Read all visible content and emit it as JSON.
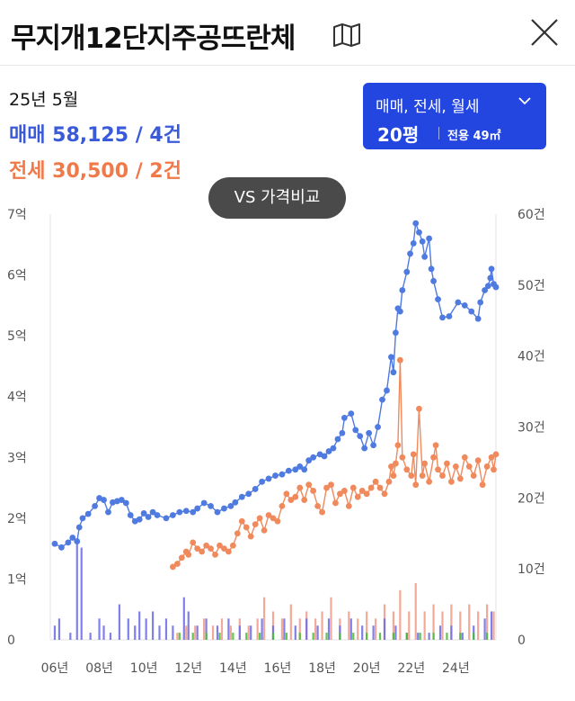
{
  "header": {
    "title": "무지개12단지주공뜨란체"
  },
  "summary": {
    "period": "25년 5월",
    "sale": "매매 58,125 / 4건",
    "jeonse": "전세 30,500 / 2건"
  },
  "filter": {
    "type": "매매, 전세, 월세",
    "size": "20평",
    "area": "전용 49㎡"
  },
  "vs_button": "VS 가격비교",
  "colors": {
    "sale": "#4f7ae0",
    "jeonse": "#f08a5d",
    "accent": "#2446e0",
    "volume_sale": "#6a6ae6",
    "volume_jeonse": "#f19a86",
    "volume_green": "#44bb33"
  },
  "chart_data": {
    "type": "line",
    "left_axis": {
      "ticks": [
        "0",
        "1억",
        "2억",
        "3억",
        "4억",
        "5억",
        "6억",
        "7억"
      ],
      "range": [
        0,
        7
      ]
    },
    "right_axis": {
      "ticks": [
        "0",
        "10건",
        "20건",
        "30건",
        "40건",
        "50건",
        "60건"
      ],
      "range": [
        0,
        60
      ]
    },
    "x_ticks": [
      {
        "year": 2006,
        "label": "06년"
      },
      {
        "year": 2008,
        "label": "08년"
      },
      {
        "year": 2010,
        "label": "10년"
      },
      {
        "year": 2012,
        "label": "12년"
      },
      {
        "year": 2014,
        "label": "14년"
      },
      {
        "year": 2016,
        "label": "16년"
      },
      {
        "year": 2018,
        "label": "18년"
      },
      {
        "year": 2020,
        "label": "20년"
      },
      {
        "year": 2022,
        "label": "22년"
      },
      {
        "year": 2024,
        "label": "24년"
      }
    ],
    "x_range": [
      2005.8,
      2025.8
    ],
    "series": [
      {
        "name": "매매",
        "points": [
          [
            2006.0,
            1.58
          ],
          [
            2006.3,
            1.52
          ],
          [
            2006.6,
            1.6
          ],
          [
            2006.8,
            1.68
          ],
          [
            2007.0,
            1.62
          ],
          [
            2007.1,
            1.85
          ],
          [
            2007.25,
            2.0
          ],
          [
            2007.5,
            2.07
          ],
          [
            2007.8,
            2.2
          ],
          [
            2008.0,
            2.33
          ],
          [
            2008.2,
            2.3
          ],
          [
            2008.4,
            2.1
          ],
          [
            2008.6,
            2.26
          ],
          [
            2008.8,
            2.28
          ],
          [
            2009.0,
            2.3
          ],
          [
            2009.2,
            2.25
          ],
          [
            2009.4,
            2.05
          ],
          [
            2009.6,
            1.95
          ],
          [
            2009.8,
            1.98
          ],
          [
            2010.0,
            2.08
          ],
          [
            2010.2,
            2.02
          ],
          [
            2010.4,
            2.1
          ],
          [
            2010.6,
            2.05
          ],
          [
            2011.0,
            2.0
          ],
          [
            2011.3,
            2.05
          ],
          [
            2011.6,
            2.1
          ],
          [
            2011.9,
            2.12
          ],
          [
            2012.2,
            2.1
          ],
          [
            2012.4,
            2.16
          ],
          [
            2012.7,
            2.25
          ],
          [
            2013.0,
            2.2
          ],
          [
            2013.3,
            2.1
          ],
          [
            2013.6,
            2.16
          ],
          [
            2013.9,
            2.2
          ],
          [
            2014.1,
            2.26
          ],
          [
            2014.4,
            2.35
          ],
          [
            2014.7,
            2.4
          ],
          [
            2015.0,
            2.48
          ],
          [
            2015.3,
            2.6
          ],
          [
            2015.6,
            2.65
          ],
          [
            2015.9,
            2.7
          ],
          [
            2016.2,
            2.72
          ],
          [
            2016.5,
            2.78
          ],
          [
            2016.8,
            2.8
          ],
          [
            2017.0,
            2.85
          ],
          [
            2017.2,
            2.8
          ],
          [
            2017.4,
            2.95
          ],
          [
            2017.6,
            3.0
          ],
          [
            2017.9,
            3.05
          ],
          [
            2018.1,
            3.02
          ],
          [
            2018.3,
            3.1
          ],
          [
            2018.5,
            3.15
          ],
          [
            2018.7,
            3.3
          ],
          [
            2018.9,
            3.4
          ],
          [
            2019.0,
            3.65
          ],
          [
            2019.3,
            3.72
          ],
          [
            2019.5,
            3.45
          ],
          [
            2019.7,
            3.35
          ],
          [
            2019.9,
            3.15
          ],
          [
            2020.1,
            3.4
          ],
          [
            2020.3,
            3.2
          ],
          [
            2020.5,
            3.5
          ],
          [
            2020.7,
            3.95
          ],
          [
            2020.9,
            4.1
          ],
          [
            2021.1,
            4.65
          ],
          [
            2021.2,
            4.4
          ],
          [
            2021.3,
            5.05
          ],
          [
            2021.4,
            5.45
          ],
          [
            2021.5,
            5.4
          ],
          [
            2021.6,
            5.75
          ],
          [
            2021.8,
            6.05
          ],
          [
            2021.95,
            6.35
          ],
          [
            2022.1,
            6.52
          ],
          [
            2022.2,
            6.85
          ],
          [
            2022.35,
            6.7
          ],
          [
            2022.5,
            6.55
          ],
          [
            2022.6,
            6.3
          ],
          [
            2022.8,
            6.6
          ],
          [
            2022.9,
            6.1
          ],
          [
            2023.0,
            5.9
          ],
          [
            2023.2,
            5.6
          ],
          [
            2023.4,
            5.3
          ],
          [
            2023.7,
            5.32
          ],
          [
            2024.1,
            5.55
          ],
          [
            2024.4,
            5.5
          ],
          [
            2024.7,
            5.4
          ],
          [
            2025.0,
            5.28
          ],
          [
            2025.1,
            5.55
          ],
          [
            2025.3,
            5.75
          ],
          [
            2025.45,
            5.82
          ],
          [
            2025.55,
            5.95
          ],
          [
            2025.6,
            6.1
          ],
          [
            2025.7,
            5.85
          ],
          [
            2025.8,
            5.8
          ]
        ]
      },
      {
        "name": "전세",
        "points": [
          [
            2011.3,
            1.2
          ],
          [
            2011.5,
            1.25
          ],
          [
            2011.7,
            1.35
          ],
          [
            2011.9,
            1.45
          ],
          [
            2012.0,
            1.4
          ],
          [
            2012.2,
            1.6
          ],
          [
            2012.4,
            1.5
          ],
          [
            2012.6,
            1.45
          ],
          [
            2012.8,
            1.55
          ],
          [
            2013.0,
            1.5
          ],
          [
            2013.2,
            1.4
          ],
          [
            2013.4,
            1.55
          ],
          [
            2013.6,
            1.5
          ],
          [
            2013.8,
            1.45
          ],
          [
            2014.0,
            1.55
          ],
          [
            2014.2,
            1.75
          ],
          [
            2014.4,
            1.95
          ],
          [
            2014.6,
            1.85
          ],
          [
            2014.8,
            1.7
          ],
          [
            2015.0,
            1.9
          ],
          [
            2015.2,
            2.0
          ],
          [
            2015.4,
            1.8
          ],
          [
            2015.6,
            2.05
          ],
          [
            2015.8,
            2.0
          ],
          [
            2016.0,
            1.95
          ],
          [
            2016.2,
            2.2
          ],
          [
            2016.4,
            2.4
          ],
          [
            2016.6,
            2.3
          ],
          [
            2016.8,
            2.35
          ],
          [
            2017.0,
            2.5
          ],
          [
            2017.2,
            2.3
          ],
          [
            2017.4,
            2.55
          ],
          [
            2017.6,
            2.45
          ],
          [
            2017.8,
            2.2
          ],
          [
            2018.0,
            2.1
          ],
          [
            2018.2,
            2.5
          ],
          [
            2018.4,
            2.55
          ],
          [
            2018.6,
            2.25
          ],
          [
            2018.8,
            2.4
          ],
          [
            2019.0,
            2.45
          ],
          [
            2019.2,
            2.2
          ],
          [
            2019.4,
            2.5
          ],
          [
            2019.6,
            2.35
          ],
          [
            2019.8,
            2.45
          ],
          [
            2020.0,
            2.4
          ],
          [
            2020.2,
            2.5
          ],
          [
            2020.4,
            2.6
          ],
          [
            2020.6,
            2.5
          ],
          [
            2020.8,
            2.4
          ],
          [
            2021.0,
            2.6
          ],
          [
            2021.1,
            2.85
          ],
          [
            2021.2,
            2.7
          ],
          [
            2021.3,
            2.9
          ],
          [
            2021.4,
            3.2
          ],
          [
            2021.5,
            4.6
          ],
          [
            2021.6,
            3.0
          ],
          [
            2021.8,
            2.8
          ],
          [
            2022.0,
            2.7
          ],
          [
            2022.1,
            3.05
          ],
          [
            2022.2,
            2.55
          ],
          [
            2022.35,
            3.8
          ],
          [
            2022.5,
            2.7
          ],
          [
            2022.6,
            2.9
          ],
          [
            2022.8,
            2.6
          ],
          [
            2023.0,
            3.0
          ],
          [
            2023.1,
            3.2
          ],
          [
            2023.2,
            2.8
          ],
          [
            2023.4,
            2.7
          ],
          [
            2023.6,
            2.9
          ],
          [
            2023.8,
            2.6
          ],
          [
            2024.0,
            2.85
          ],
          [
            2024.2,
            2.65
          ],
          [
            2024.4,
            3.0
          ],
          [
            2024.6,
            2.85
          ],
          [
            2024.8,
            2.7
          ],
          [
            2025.0,
            2.95
          ],
          [
            2025.2,
            2.55
          ],
          [
            2025.4,
            2.85
          ],
          [
            2025.6,
            3.0
          ],
          [
            2025.7,
            2.8
          ],
          [
            2025.8,
            3.05
          ]
        ]
      }
    ],
    "volume_sale": [
      [
        2006.0,
        2
      ],
      [
        2006.2,
        3
      ],
      [
        2006.7,
        1
      ],
      [
        2007.0,
        14
      ],
      [
        2007.2,
        13
      ],
      [
        2007.6,
        1
      ],
      [
        2008.0,
        3
      ],
      [
        2008.2,
        2
      ],
      [
        2008.5,
        1
      ],
      [
        2008.9,
        5
      ],
      [
        2009.3,
        3
      ],
      [
        2009.6,
        2
      ],
      [
        2009.8,
        4
      ],
      [
        2010.1,
        3
      ],
      [
        2010.4,
        4
      ],
      [
        2010.7,
        2
      ],
      [
        2011.0,
        3
      ],
      [
        2011.3,
        2
      ],
      [
        2011.8,
        6
      ],
      [
        2012.0,
        4
      ],
      [
        2012.4,
        2
      ],
      [
        2012.8,
        3
      ],
      [
        2013.3,
        2
      ],
      [
        2013.8,
        3
      ],
      [
        2014.3,
        2
      ],
      [
        2014.8,
        2
      ],
      [
        2015.3,
        3
      ],
      [
        2015.8,
        2
      ],
      [
        2016.3,
        3
      ],
      [
        2016.8,
        2
      ],
      [
        2017.3,
        3
      ],
      [
        2017.8,
        2
      ],
      [
        2018.3,
        3
      ],
      [
        2018.8,
        2
      ],
      [
        2019.3,
        3
      ],
      [
        2019.8,
        2
      ],
      [
        2020.3,
        2
      ],
      [
        2020.8,
        3
      ],
      [
        2021.3,
        2
      ],
      [
        2021.8,
        1
      ],
      [
        2022.3,
        1
      ],
      [
        2022.8,
        1
      ],
      [
        2023.3,
        2
      ],
      [
        2023.8,
        2
      ],
      [
        2024.3,
        1
      ],
      [
        2024.8,
        2
      ],
      [
        2025.3,
        3
      ],
      [
        2025.6,
        4
      ]
    ],
    "volume_jeonse": [
      [
        2011.5,
        1
      ],
      [
        2011.9,
        2
      ],
      [
        2012.3,
        2
      ],
      [
        2012.7,
        3
      ],
      [
        2013.1,
        2
      ],
      [
        2013.5,
        3
      ],
      [
        2013.9,
        2
      ],
      [
        2014.3,
        3
      ],
      [
        2014.7,
        2
      ],
      [
        2015.1,
        3
      ],
      [
        2015.4,
        6
      ],
      [
        2015.8,
        4
      ],
      [
        2016.2,
        3
      ],
      [
        2016.6,
        5
      ],
      [
        2017.0,
        3
      ],
      [
        2017.3,
        4
      ],
      [
        2017.7,
        3
      ],
      [
        2018.0,
        4
      ],
      [
        2018.4,
        6
      ],
      [
        2018.8,
        3
      ],
      [
        2019.2,
        4
      ],
      [
        2019.6,
        3
      ],
      [
        2020.0,
        4
      ],
      [
        2020.4,
        3
      ],
      [
        2020.8,
        5
      ],
      [
        2021.2,
        4
      ],
      [
        2021.5,
        7
      ],
      [
        2021.9,
        4
      ],
      [
        2022.2,
        8
      ],
      [
        2022.6,
        4
      ],
      [
        2023.0,
        5
      ],
      [
        2023.4,
        4
      ],
      [
        2023.8,
        5
      ],
      [
        2024.2,
        4
      ],
      [
        2024.6,
        5
      ],
      [
        2025.0,
        4
      ],
      [
        2025.4,
        5
      ],
      [
        2025.7,
        4
      ]
    ],
    "volume_green": [
      [
        2011.6,
        1
      ],
      [
        2012.2,
        1
      ],
      [
        2012.8,
        1
      ],
      [
        2013.4,
        1
      ],
      [
        2014.0,
        1
      ],
      [
        2014.6,
        1
      ],
      [
        2015.2,
        1
      ],
      [
        2015.8,
        1
      ],
      [
        2016.4,
        1
      ],
      [
        2017.0,
        1
      ],
      [
        2017.6,
        1
      ],
      [
        2018.2,
        1
      ],
      [
        2018.8,
        1
      ],
      [
        2019.4,
        1
      ],
      [
        2020.0,
        1
      ],
      [
        2020.6,
        1
      ],
      [
        2021.2,
        1
      ],
      [
        2021.8,
        1
      ],
      [
        2022.4,
        1
      ],
      [
        2023.0,
        1
      ],
      [
        2023.6,
        1
      ],
      [
        2024.2,
        1
      ],
      [
        2024.8,
        1
      ],
      [
        2025.4,
        1
      ]
    ]
  }
}
